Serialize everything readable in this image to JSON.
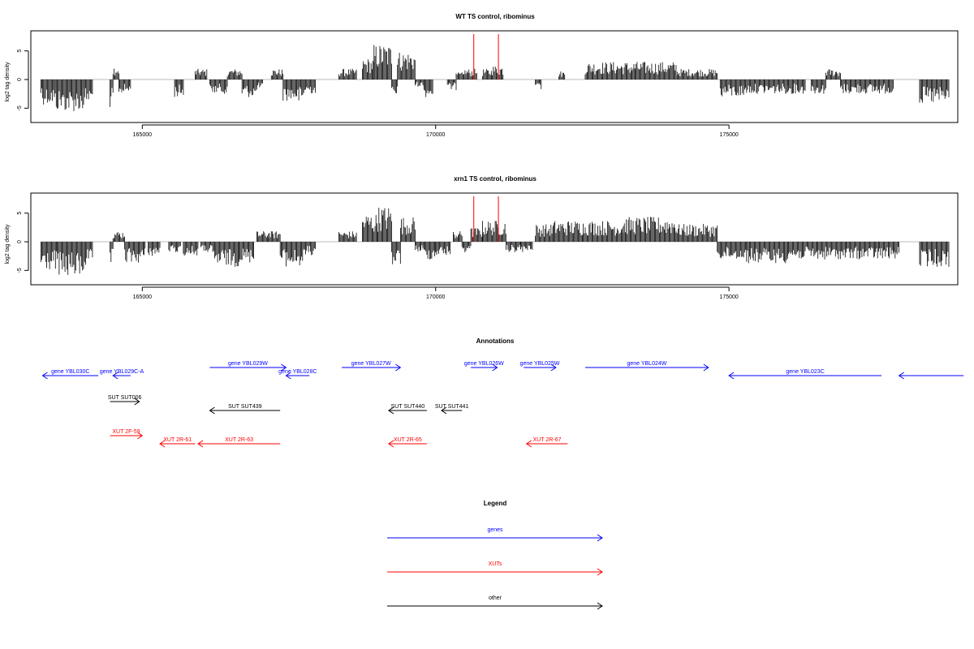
{
  "colors": {
    "genes": "#0000ff",
    "xuts": "#ff0000",
    "other": "#000000",
    "baseline": "#bebebe",
    "marker": "#ff0000"
  },
  "chart_data": [
    {
      "type": "bar",
      "title": "WT TS control, ribominus",
      "ylabel": "log2 tag density",
      "xlim": [
        163100,
        178900
      ],
      "ylim": [
        -7.5,
        8.5
      ],
      "xticks": [
        165000,
        170000,
        175000
      ],
      "yticks": [
        -5,
        0,
        5
      ],
      "grid": false,
      "markers_x": [
        170650,
        171070
      ],
      "segments": [
        {
          "x0": 163270,
          "x1": 163300,
          "y": -2.5
        },
        {
          "x0": 163300,
          "x1": 163500,
          "y": -3.5
        },
        {
          "x0": 163500,
          "x1": 163750,
          "y": -4.5
        },
        {
          "x0": 163750,
          "x1": 164000,
          "y": -4.5
        },
        {
          "x0": 164000,
          "x1": 164150,
          "y": -3.5
        },
        {
          "x0": 164450,
          "x1": 164500,
          "y": -4
        },
        {
          "x0": 164500,
          "x1": 164600,
          "y": 2
        },
        {
          "x0": 164600,
          "x1": 164800,
          "y": -2
        },
        {
          "x0": 165550,
          "x1": 165700,
          "y": -2.5
        },
        {
          "x0": 165900,
          "x1": 166100,
          "y": 1.5
        },
        {
          "x0": 166150,
          "x1": 166450,
          "y": -2
        },
        {
          "x0": 166450,
          "x1": 166700,
          "y": 1.5
        },
        {
          "x0": 166700,
          "x1": 166950,
          "y": -2.5
        },
        {
          "x0": 166950,
          "x1": 167050,
          "y": -1.5
        },
        {
          "x0": 167200,
          "x1": 167400,
          "y": 1.5
        },
        {
          "x0": 167400,
          "x1": 167650,
          "y": -3
        },
        {
          "x0": 167650,
          "x1": 167750,
          "y": -3.5
        },
        {
          "x0": 167750,
          "x1": 167950,
          "y": -2
        },
        {
          "x0": 168350,
          "x1": 168650,
          "y": 1.5
        },
        {
          "x0": 168750,
          "x1": 168950,
          "y": 3
        },
        {
          "x0": 168950,
          "x1": 169250,
          "y": 5
        },
        {
          "x0": 169250,
          "x1": 169350,
          "y": -3
        },
        {
          "x0": 169350,
          "x1": 169650,
          "y": 4
        },
        {
          "x0": 169650,
          "x1": 169800,
          "y": -1
        },
        {
          "x0": 169800,
          "x1": 169950,
          "y": -2.5
        },
        {
          "x0": 170200,
          "x1": 170350,
          "y": -1.5
        },
        {
          "x0": 170350,
          "x1": 170500,
          "y": 1
        },
        {
          "x0": 170500,
          "x1": 170700,
          "y": 1.5
        },
        {
          "x0": 170800,
          "x1": 170950,
          "y": 1.5
        },
        {
          "x0": 170950,
          "x1": 171150,
          "y": 2
        },
        {
          "x0": 171700,
          "x1": 171800,
          "y": -1.5
        },
        {
          "x0": 172100,
          "x1": 172200,
          "y": 1.2
        },
        {
          "x0": 172550,
          "x1": 173400,
          "y": 2.5
        },
        {
          "x0": 173400,
          "x1": 174100,
          "y": 2.5
        },
        {
          "x0": 174100,
          "x1": 174800,
          "y": 1.5
        },
        {
          "x0": 174850,
          "x1": 175250,
          "y": -2.5
        },
        {
          "x0": 175250,
          "x1": 175600,
          "y": -2
        },
        {
          "x0": 175600,
          "x1": 176000,
          "y": -2
        },
        {
          "x0": 176000,
          "x1": 176300,
          "y": -2
        },
        {
          "x0": 176400,
          "x1": 176650,
          "y": -2
        },
        {
          "x0": 176650,
          "x1": 176900,
          "y": 1.5
        },
        {
          "x0": 176900,
          "x1": 177500,
          "y": -2
        },
        {
          "x0": 177500,
          "x1": 177800,
          "y": -2
        },
        {
          "x0": 178250,
          "x1": 178750,
          "y": -3.5
        }
      ]
    },
    {
      "type": "bar",
      "title": "xrn1 TS control, ribominus",
      "ylabel": "log2 tag density",
      "xlim": [
        163100,
        178900
      ],
      "ylim": [
        -7.5,
        8.5
      ],
      "xticks": [
        165000,
        170000,
        175000
      ],
      "yticks": [
        -5,
        0,
        5
      ],
      "grid": false,
      "markers_x": [
        170650,
        171070
      ],
      "segments": [
        {
          "x0": 163270,
          "x1": 163550,
          "y": -4
        },
        {
          "x0": 163550,
          "x1": 164000,
          "y": -5
        },
        {
          "x0": 164000,
          "x1": 164150,
          "y": -3.5
        },
        {
          "x0": 164450,
          "x1": 164500,
          "y": -3.5
        },
        {
          "x0": 164500,
          "x1": 164700,
          "y": 1.5
        },
        {
          "x0": 164700,
          "x1": 165050,
          "y": -3
        },
        {
          "x0": 165100,
          "x1": 165300,
          "y": -2
        },
        {
          "x0": 165450,
          "x1": 165650,
          "y": -1.5
        },
        {
          "x0": 165700,
          "x1": 165950,
          "y": -2
        },
        {
          "x0": 166000,
          "x1": 166200,
          "y": -1.5
        },
        {
          "x0": 166200,
          "x1": 166650,
          "y": -3.5
        },
        {
          "x0": 166650,
          "x1": 166900,
          "y": -3
        },
        {
          "x0": 166950,
          "x1": 167150,
          "y": 1.5
        },
        {
          "x0": 167150,
          "x1": 167350,
          "y": 1.5
        },
        {
          "x0": 167350,
          "x1": 167750,
          "y": -3.5
        },
        {
          "x0": 167750,
          "x1": 167950,
          "y": -2
        },
        {
          "x0": 168350,
          "x1": 168650,
          "y": 1.5
        },
        {
          "x0": 168750,
          "x1": 169000,
          "y": 4
        },
        {
          "x0": 169000,
          "x1": 169250,
          "y": 5
        },
        {
          "x0": 169250,
          "x1": 169400,
          "y": -3.5
        },
        {
          "x0": 169400,
          "x1": 169650,
          "y": 3.5
        },
        {
          "x0": 169650,
          "x1": 169800,
          "y": -1.5
        },
        {
          "x0": 169800,
          "x1": 170000,
          "y": -2.5
        },
        {
          "x0": 170000,
          "x1": 170250,
          "y": -2
        },
        {
          "x0": 170300,
          "x1": 170450,
          "y": 1.5
        },
        {
          "x0": 170450,
          "x1": 170600,
          "y": -1.5
        },
        {
          "x0": 170600,
          "x1": 170800,
          "y": 2
        },
        {
          "x0": 170800,
          "x1": 171200,
          "y": 3
        },
        {
          "x0": 171200,
          "x1": 171450,
          "y": -1.5
        },
        {
          "x0": 171450,
          "x1": 171650,
          "y": -1.5
        },
        {
          "x0": 171700,
          "x1": 172000,
          "y": 2.5
        },
        {
          "x0": 172000,
          "x1": 172500,
          "y": 3
        },
        {
          "x0": 172500,
          "x1": 173200,
          "y": 3
        },
        {
          "x0": 173200,
          "x1": 174100,
          "y": 3.5
        },
        {
          "x0": 174100,
          "x1": 174800,
          "y": 2.5
        },
        {
          "x0": 174800,
          "x1": 175300,
          "y": -2.5
        },
        {
          "x0": 175300,
          "x1": 176000,
          "y": -3
        },
        {
          "x0": 176000,
          "x1": 176500,
          "y": -2.5
        },
        {
          "x0": 176500,
          "x1": 177000,
          "y": -2.5
        },
        {
          "x0": 177000,
          "x1": 177500,
          "y": -2.5
        },
        {
          "x0": 177500,
          "x1": 177900,
          "y": -2.5
        },
        {
          "x0": 178250,
          "x1": 178750,
          "y": -3.5
        }
      ]
    }
  ],
  "annotations": {
    "title": "Annotations",
    "features": [
      {
        "label": "gene YBL030C",
        "type": "genes",
        "dir": "left",
        "start": 163300,
        "end": 164250,
        "row": 0
      },
      {
        "label": "gene YBL029C-A",
        "type": "genes",
        "dir": "left",
        "start": 164500,
        "end": 164800,
        "row": 0
      },
      {
        "label": "gene YBL029W",
        "type": "genes",
        "dir": "right",
        "start": 166150,
        "end": 167450,
        "row": -1
      },
      {
        "label": "gene YBL028C",
        "type": "genes",
        "dir": "left",
        "start": 167450,
        "end": 167850,
        "row": 0
      },
      {
        "label": "gene YBL027W",
        "type": "genes",
        "dir": "right",
        "start": 168400,
        "end": 169400,
        "row": -1
      },
      {
        "label": "gene YBL026W",
        "type": "genes",
        "dir": "right",
        "start": 170600,
        "end": 171050,
        "row": -1
      },
      {
        "label": "gene YBL025W",
        "type": "genes",
        "dir": "right",
        "start": 171500,
        "end": 172050,
        "row": -1
      },
      {
        "label": "gene YBL024W",
        "type": "genes",
        "dir": "right",
        "start": 172550,
        "end": 174650,
        "row": -1
      },
      {
        "label": "gene YBL023C",
        "type": "genes",
        "dir": "left",
        "start": 175000,
        "end": 177600,
        "row": 0
      },
      {
        "label": "",
        "type": "genes",
        "dir": "left",
        "start": 177900,
        "end": 179000,
        "row": 0
      },
      {
        "label": "SUT SUT006",
        "type": "other",
        "dir": "right",
        "start": 164450,
        "end": 164950,
        "row": 2
      },
      {
        "label": "SUT SUT439",
        "type": "other",
        "dir": "left",
        "start": 166150,
        "end": 167350,
        "row": 3
      },
      {
        "label": "SUT SUT440",
        "type": "other",
        "dir": "left",
        "start": 169200,
        "end": 169850,
        "row": 3
      },
      {
        "label": "SUT SUT441",
        "type": "other",
        "dir": "left",
        "start": 170100,
        "end": 170450,
        "row": 3
      },
      {
        "label": "XUT 2F-59",
        "type": "xuts",
        "dir": "right",
        "start": 164450,
        "end": 165000,
        "row": 5
      },
      {
        "label": "XUT 2R-61",
        "type": "xuts",
        "dir": "left",
        "start": 165300,
        "end": 165900,
        "row": 6
      },
      {
        "label": "XUT 2R-63",
        "type": "xuts",
        "dir": "left",
        "start": 165950,
        "end": 167350,
        "row": 6
      },
      {
        "label": "XUT 2R-65",
        "type": "xuts",
        "dir": "left",
        "start": 169200,
        "end": 169850,
        "row": 6
      },
      {
        "label": "XUT 2R-67",
        "type": "xuts",
        "dir": "left",
        "start": 171550,
        "end": 172250,
        "row": 6
      }
    ]
  },
  "legend": {
    "title": "Legend",
    "entries": [
      {
        "label": "genes",
        "type": "genes"
      },
      {
        "label": "XUTs",
        "type": "xuts"
      },
      {
        "label": "other",
        "type": "other"
      }
    ]
  }
}
